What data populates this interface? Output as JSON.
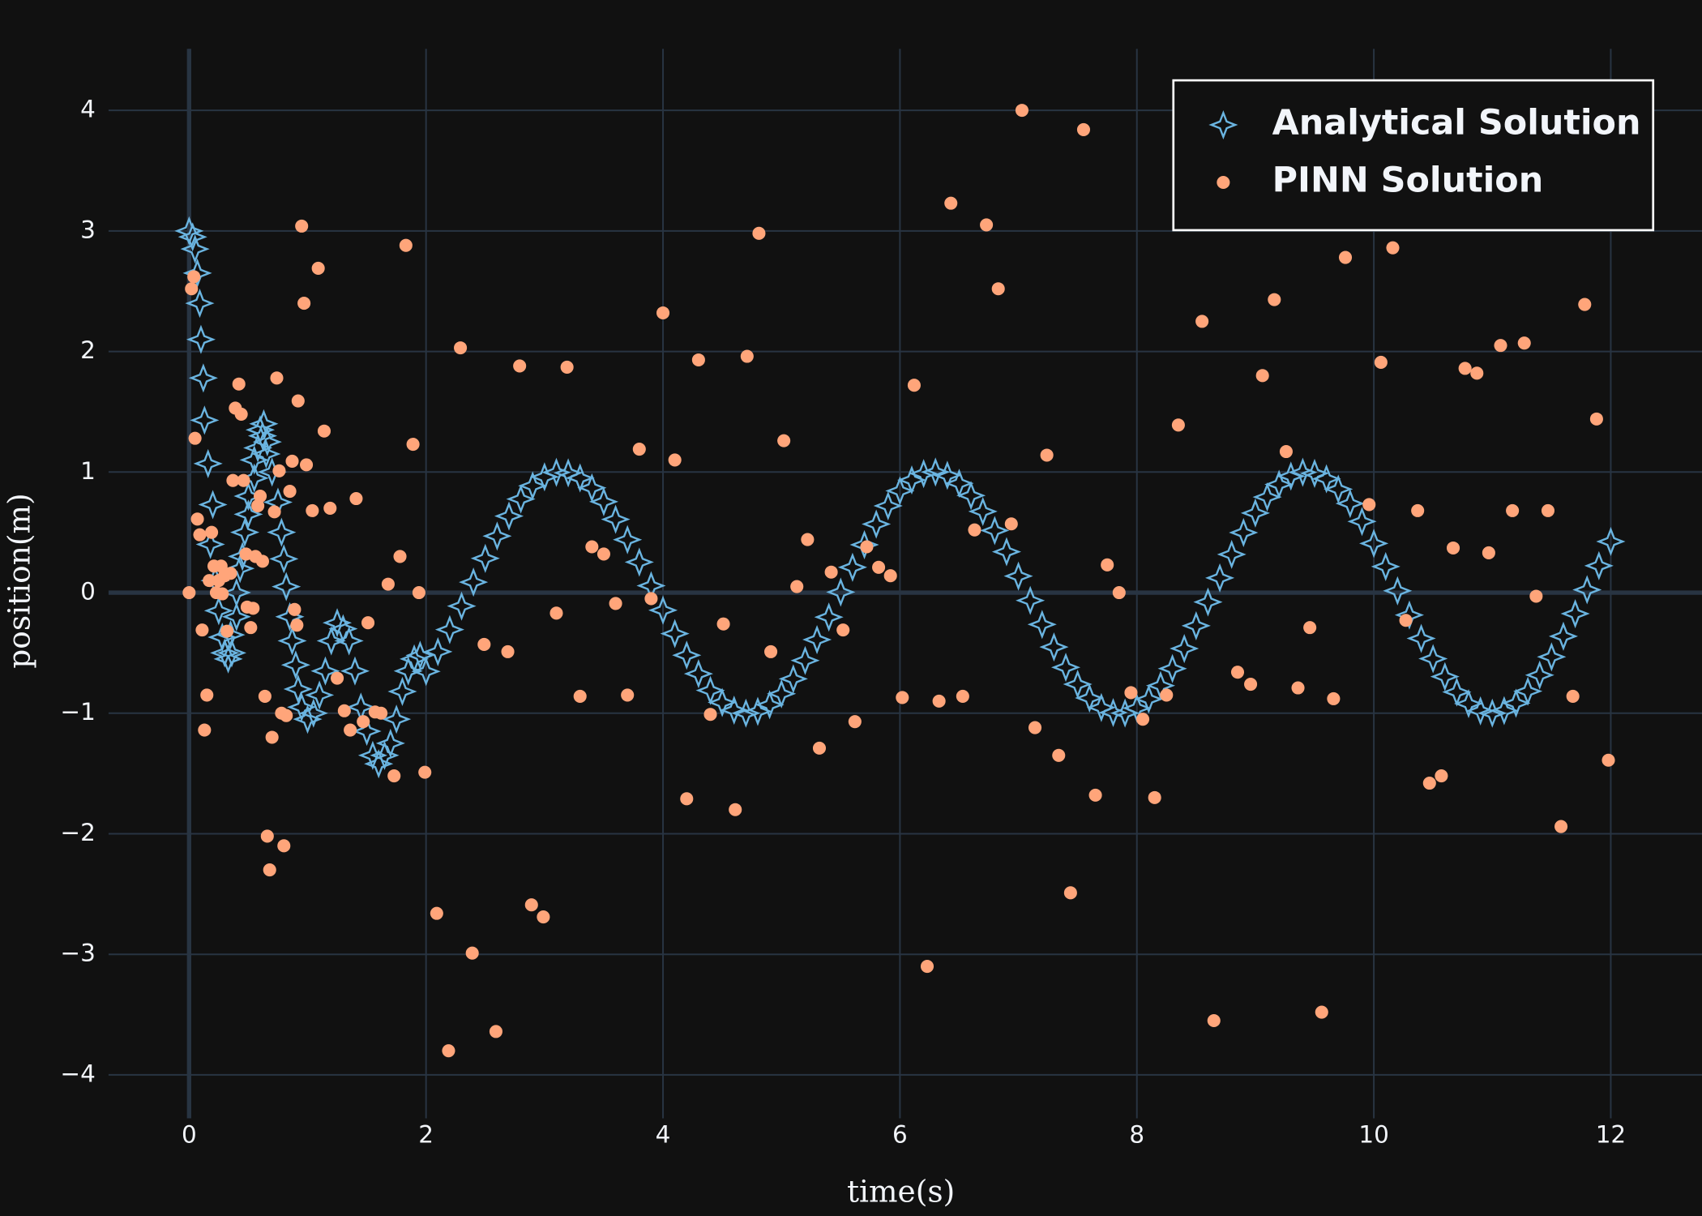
{
  "chart_data": {
    "type": "scatter",
    "x_label": "time(s)",
    "y_label": "position(m)",
    "xlim": [
      -0.68,
      12.77
    ],
    "ylim": [
      -4.36,
      4.51
    ],
    "xticks": [
      0,
      2,
      4,
      6,
      8,
      10,
      12
    ],
    "yticks": [
      {
        "value": -4,
        "label": "−4"
      },
      {
        "value": -3,
        "label": "−3"
      },
      {
        "value": -2,
        "label": "−2"
      },
      {
        "value": -1,
        "label": "−1"
      },
      0,
      1,
      2,
      3,
      4
    ],
    "grid": true,
    "zeroline": true,
    "legend_position": "top-right",
    "series": [
      {
        "name": "Analytical Solution",
        "color": "#6ab4e0",
        "marker": "star-diamond-open",
        "x": [
          0,
          0.03,
          0.05,
          0.07,
          0.09,
          0.1,
          0.12,
          0.13,
          0.16,
          0.2,
          0.18,
          0.22,
          0.25,
          0.28,
          0.3,
          0.33,
          0.36,
          0.4,
          0.43,
          0.47,
          0.5,
          0.55,
          0.6,
          0.63,
          0.66,
          0.7,
          0.75,
          0.78,
          0.8,
          0.82,
          0.85,
          0.87,
          0.9,
          0.92,
          0.95,
          1.0,
          1.05,
          1.1,
          1.15,
          1.2,
          1.25,
          1.3,
          1.35,
          1.4,
          1.45,
          1.5,
          1.55,
          1.6,
          1.65,
          1.7,
          1.75,
          1.8,
          1.85,
          1.9,
          1.95,
          0.58,
          0.62,
          0.65,
          0.55,
          0.5,
          0.45,
          0.4,
          0.35,
          2.0,
          2.1,
          2.2,
          2.3,
          2.4,
          2.5,
          2.6,
          2.7,
          2.8,
          2.9,
          3.0,
          3.1,
          3.2,
          3.3,
          3.4,
          3.5,
          3.6,
          3.7,
          3.8,
          3.9,
          4.0,
          4.1,
          4.2,
          4.3,
          4.4,
          4.5,
          4.6,
          4.7,
          4.8,
          4.9,
          5.0,
          5.1,
          5.2,
          5.3,
          5.4,
          5.5,
          5.6,
          5.7,
          5.8,
          5.9,
          6.0,
          6.1,
          6.2,
          6.3,
          6.4,
          6.5,
          6.6,
          6.7,
          6.8,
          6.9,
          7.0,
          7.1,
          7.2,
          7.3,
          7.4,
          7.5,
          7.6,
          7.7,
          7.8,
          7.9,
          8.0,
          8.1,
          8.2,
          8.3,
          8.4,
          8.5,
          8.6,
          8.7,
          8.8,
          8.9,
          9.0,
          9.1,
          9.2,
          9.3,
          9.4,
          9.5,
          9.6,
          9.7,
          9.8,
          9.9,
          10.0,
          10.1,
          10.2,
          10.3,
          10.4,
          10.5,
          10.6,
          10.7,
          10.8,
          10.9,
          11.0,
          11.1,
          11.2,
          11.3,
          11.4,
          11.5,
          11.6,
          11.7,
          11.8,
          11.9,
          12.0
        ],
        "values": [
          3,
          2.95,
          2.85,
          2.65,
          2.4,
          2.1,
          1.78,
          1.43,
          1.07,
          0.73,
          0.4,
          0.1,
          -0.15,
          -0.37,
          -0.5,
          -0.55,
          -0.5,
          -0.2,
          0.2,
          0.5,
          0.8,
          1.1,
          1.35,
          1.4,
          1.25,
          1.0,
          0.75,
          0.5,
          0.28,
          0.05,
          -0.2,
          -0.4,
          -0.6,
          -0.8,
          -0.95,
          -1.05,
          -1.0,
          -0.85,
          -0.65,
          -0.4,
          -0.25,
          -0.3,
          -0.4,
          -0.65,
          -0.95,
          -1.15,
          -1.35,
          -1.42,
          -1.35,
          -1.25,
          -1.05,
          -0.82,
          -0.65,
          -0.55,
          -0.52,
          1.2,
          1.3,
          1.15,
          0.95,
          0.65,
          0.3,
          0.0,
          -0.35,
          -0.654,
          -0.49,
          -0.307,
          -0.112,
          0.087,
          0.284,
          0.469,
          0.635,
          0.776,
          0.886,
          0.96,
          0.997,
          0.993,
          0.951,
          0.869,
          0.754,
          0.608,
          0.439,
          0.253,
          0.057,
          -0.146,
          -0.34,
          -0.519,
          -0.673,
          -0.811,
          -0.911,
          -0.975,
          -1.0,
          -0.985,
          -0.93,
          -0.839,
          -0.715,
          -0.563,
          -0.39,
          -0.203,
          0.004,
          0.21,
          0.397,
          0.568,
          0.72,
          0.844,
          0.934,
          0.987,
          1.0,
          0.973,
          0.907,
          0.805,
          0.673,
          0.515,
          0.339,
          0.137,
          -0.065,
          -0.264,
          -0.451,
          -0.62,
          -0.76,
          -0.874,
          -0.953,
          -0.995,
          -0.999,
          -0.958,
          -0.883,
          -0.771,
          -0.63,
          -0.464,
          -0.275,
          -0.078,
          0.122,
          0.317,
          0.498,
          0.66,
          0.793,
          0.898,
          0.966,
          0.998,
          0.989,
          0.944,
          0.858,
          0.739,
          0.59,
          0.408,
          0.216,
          0.015,
          -0.186,
          -0.38,
          -0.548,
          -0.697,
          -0.824,
          -0.921,
          -0.981,
          -1.0,
          -0.979,
          -0.917,
          -0.818,
          -0.684,
          -0.533,
          -0.362,
          -0.175,
          0.024,
          0.223,
          0.424
        ]
      },
      {
        "name": "PINN Solution",
        "color": "#ffa57a",
        "marker": "circle",
        "x": [
          0,
          0.02,
          0.04,
          0.05,
          0.07,
          0.09,
          0.11,
          0.13,
          0.15,
          0.17,
          0.19,
          0.21,
          0.23,
          0.25,
          0.27,
          0.28,
          0.3,
          0.32,
          0.35,
          0.37,
          0.39,
          0.42,
          0.44,
          0.46,
          0.48,
          0.49,
          0.52,
          0.54,
          0.56,
          0.58,
          0.6,
          0.62,
          0.64,
          0.66,
          0.68,
          0.7,
          0.72,
          0.74,
          0.76,
          0.78,
          0.8,
          0.82,
          0.85,
          0.87,
          0.89,
          0.91,
          0.92,
          0.95,
          0.97,
          0.99,
          1.04,
          1.09,
          1.14,
          1.19,
          1.25,
          1.31,
          1.36,
          1.41,
          1.47,
          1.51,
          1.57,
          1.62,
          1.68,
          1.73,
          1.78,
          1.83,
          1.89,
          1.94,
          1.99,
          2.09,
          2.19,
          2.29,
          2.39,
          2.49,
          2.59,
          2.69,
          2.79,
          2.89,
          2.99,
          3.1,
          3.19,
          3.3,
          3.4,
          3.5,
          3.6,
          3.7,
          3.8,
          3.9,
          4.0,
          4.1,
          4.2,
          4.3,
          4.4,
          4.51,
          4.61,
          4.71,
          4.81,
          4.91,
          5.02,
          5.13,
          5.22,
          5.32,
          5.42,
          5.52,
          5.62,
          5.72,
          5.82,
          5.92,
          6.02,
          6.12,
          6.23,
          6.33,
          6.43,
          6.53,
          6.63,
          6.73,
          6.83,
          6.94,
          7.03,
          7.14,
          7.24,
          7.34,
          7.44,
          7.55,
          7.65,
          7.75,
          7.85,
          7.95,
          8.05,
          8.15,
          8.25,
          8.35,
          8.55,
          8.65,
          8.85,
          8.96,
          9.06,
          9.16,
          9.26,
          9.36,
          9.46,
          9.56,
          9.66,
          9.76,
          9.96,
          10.06,
          10.16,
          10.27,
          10.37,
          10.47,
          10.57,
          10.67,
          10.77,
          10.87,
          10.97,
          11.07,
          11.17,
          11.27,
          11.37,
          11.47,
          11.58,
          11.68,
          11.78,
          11.88,
          11.98
        ],
        "values": [
          0,
          2.52,
          2.62,
          1.28,
          0.61,
          0.48,
          -0.31,
          -1.14,
          -0.85,
          0.1,
          0.5,
          0.22,
          0.0,
          0.1,
          0.22,
          -0.01,
          0.14,
          -0.32,
          0.16,
          0.93,
          1.53,
          1.73,
          1.48,
          0.93,
          0.32,
          -0.12,
          -0.29,
          -0.13,
          0.3,
          0.72,
          0.8,
          0.26,
          -0.86,
          -2.02,
          -2.3,
          -1.2,
          0.67,
          1.78,
          1.01,
          -1.0,
          -2.1,
          -1.02,
          0.84,
          1.09,
          -0.14,
          -0.27,
          1.59,
          3.04,
          2.4,
          1.06,
          0.68,
          2.69,
          1.34,
          0.7,
          -0.71,
          -0.98,
          -1.14,
          0.78,
          -1.07,
          -0.25,
          -0.99,
          -1.0,
          0.07,
          -1.52,
          0.3,
          2.88,
          1.23,
          0.0,
          -1.49,
          -2.66,
          -3.8,
          2.03,
          -2.99,
          -0.43,
          -3.64,
          -0.49,
          1.88,
          -2.59,
          -2.69,
          -0.17,
          1.87,
          -0.86,
          0.38,
          0.32,
          -0.09,
          -0.85,
          1.19,
          -0.05,
          2.32,
          1.1,
          -1.71,
          1.93,
          -1.01,
          -0.26,
          -1.8,
          1.96,
          2.98,
          -0.49,
          1.26,
          0.05,
          0.44,
          -1.29,
          0.17,
          -0.31,
          -1.07,
          0.38,
          0.21,
          0.14,
          -0.87,
          1.72,
          -3.1,
          -0.9,
          3.23,
          -0.86,
          0.52,
          3.05,
          2.52,
          0.57,
          4.0,
          -1.12,
          1.14,
          -1.35,
          -2.49,
          3.84,
          -1.68,
          0.23,
          0.0,
          -0.83,
          -1.05,
          -1.7,
          -0.85,
          1.39,
          2.25,
          -3.55,
          -0.66,
          -0.76,
          1.8,
          2.43,
          1.17,
          -0.79,
          -0.29,
          -3.48,
          -0.88,
          2.78,
          0.73,
          1.91,
          2.86,
          -0.23,
          0.68,
          -1.58,
          -1.52,
          0.37,
          1.86,
          1.82,
          0.33,
          2.05,
          0.68,
          2.07,
          -0.03,
          0.68,
          -1.94,
          -0.86,
          2.39,
          1.44,
          -1.39
        ]
      }
    ]
  }
}
